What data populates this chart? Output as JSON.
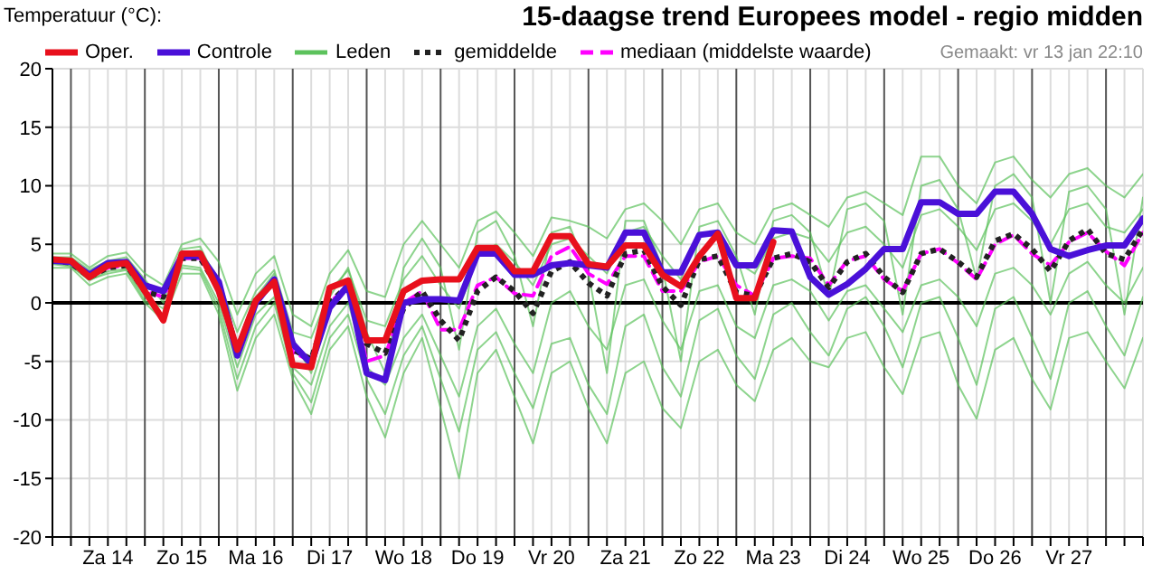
{
  "chart_data": {
    "type": "line",
    "title": "15-daagse trend Europees model - regio midden",
    "ylabel": "Temperatuur (°C):",
    "annotations": [
      "Gemaakt: vr 13 jan 22:10"
    ],
    "categories": [
      null,
      null,
      null,
      "Za 14",
      null,
      null,
      null,
      "Zo 15",
      null,
      null,
      null,
      "Ma 16",
      null,
      null,
      null,
      "Di 17",
      null,
      null,
      null,
      "Wo 18",
      null,
      null,
      null,
      "Do 19",
      null,
      null,
      null,
      "Vr 20",
      null,
      null,
      null,
      "Za 21",
      null,
      null,
      null,
      "Zo 22",
      null,
      null,
      null,
      "Ma 23",
      null,
      null,
      null,
      "Di 24",
      null,
      null,
      null,
      "Wo 25",
      null,
      null,
      null,
      "Do 26",
      null,
      null,
      null,
      "Vr 27",
      null,
      null,
      null,
      null
    ],
    "ylim": [
      -20,
      20
    ],
    "yticks": [
      -20,
      -15,
      -10,
      -5,
      0,
      5,
      10,
      15,
      20
    ],
    "grid": true,
    "legend": "top",
    "marker": "none",
    "ref_lines": [
      {
        "axis": "y",
        "value": 0,
        "color": "#000000"
      }
    ],
    "series": [
      {
        "name": "Oper.",
        "color": "#e8101c",
        "line_style": "solid",
        "values": [
          3.7,
          3.6,
          2.2,
          3.2,
          3.4,
          1.0,
          -1.5,
          4.2,
          4.2,
          1.0,
          -4.0,
          0.2,
          1.8,
          -5.3,
          -5.5,
          1.3,
          1.9,
          -3.2,
          -3.2,
          1.0,
          1.9,
          2.0,
          2.0,
          4.7,
          4.7,
          2.7,
          2.7,
          5.7,
          5.7,
          3.3,
          3.1,
          4.9,
          4.9,
          2.4,
          1.4,
          4.0,
          5.9,
          0.4,
          0.4,
          5.2,
          null,
          null,
          null,
          null,
          null,
          null,
          null,
          null,
          null,
          null,
          null,
          null,
          null,
          null,
          null,
          null,
          null,
          null,
          null,
          null
        ]
      },
      {
        "name": "Controle",
        "color": "#4a10d8",
        "line_style": "solid",
        "values": [
          3.6,
          3.5,
          2.4,
          3.4,
          3.5,
          1.5,
          1.0,
          4.0,
          4.0,
          1.8,
          -4.5,
          0.0,
          2.0,
          -3.5,
          -5.2,
          -0.4,
          1.5,
          -6.0,
          -6.6,
          0.0,
          0.3,
          0.3,
          0.2,
          4.2,
          4.2,
          2.4,
          2.4,
          3.2,
          3.4,
          3.2,
          3.0,
          6.0,
          6.0,
          2.6,
          2.6,
          5.8,
          6.0,
          3.2,
          3.2,
          6.2,
          6.1,
          2.2,
          0.7,
          1.6,
          2.9,
          4.6,
          4.6,
          8.6,
          8.6,
          7.6,
          7.6,
          9.5,
          9.5,
          7.6,
          4.6,
          4.0,
          4.5,
          4.9,
          4.9,
          7.2
        ]
      },
      {
        "name": "Leden",
        "color": "#5cc25c",
        "line_style": "solid",
        "values": [
          4.2,
          4.2,
          3.0,
          4.0,
          4.3,
          2.5,
          1.5,
          5.0,
          5.5,
          3.5,
          -1.0,
          2.5,
          4.0,
          -1.0,
          -2.0,
          2.5,
          4.5,
          1.0,
          0.5,
          5.0,
          7.0,
          5.0,
          3.0,
          7.0,
          7.8,
          6.0,
          4.0,
          7.3,
          7.0,
          6.5,
          5.5,
          8.0,
          8.5,
          7.0,
          5.0,
          8.0,
          8.5,
          6.0,
          5.0,
          8.0,
          8.5,
          7.5,
          6.5,
          9.0,
          9.5,
          8.5,
          7.5,
          12.5,
          12.5,
          10.0,
          8.5,
          12.0,
          12.5,
          10.5,
          9.0,
          11.0,
          11.5,
          10.0,
          9.0,
          11.0
        ]
      },
      {
        "name": "gemiddelde",
        "color": "#222222",
        "line_style": "dotted",
        "values": [
          3.6,
          3.4,
          2.2,
          3.0,
          3.2,
          1.0,
          0.5,
          3.8,
          3.8,
          1.2,
          -4.0,
          0.2,
          1.8,
          -4.0,
          -4.8,
          0,
          1.5,
          -3.5,
          -4.3,
          -0.5,
          1.0,
          -1.5,
          -3.2,
          1.0,
          2.2,
          1.0,
          -0.9,
          2.7,
          3.5,
          1.7,
          0.6,
          4.2,
          4.5,
          1.4,
          -0.2,
          3.7,
          4.0,
          0.9,
          0.6,
          3.8,
          4.2,
          3.5,
          1.3,
          3.5,
          4.2,
          2.2,
          0.9,
          4.2,
          4.6,
          3.5,
          2.2,
          5.3,
          5.9,
          4.6,
          2.7,
          5.3,
          6.3,
          4.2,
          3.7,
          6.3
        ]
      },
      {
        "name": "mediaan (middelste waarde)",
        "color": "#ff00ff",
        "line_style": "dashed",
        "values": [
          3.6,
          3.4,
          2.2,
          3.0,
          3.2,
          1.0,
          0.5,
          3.8,
          3.8,
          1.2,
          -4.2,
          0.2,
          1.8,
          -4.2,
          -5.0,
          0,
          1.5,
          -5.0,
          -4.5,
          0.0,
          1.0,
          -2.3,
          -2.3,
          1.5,
          2.2,
          0.8,
          0.6,
          4.0,
          4.8,
          2.5,
          1.6,
          4.0,
          4.0,
          1.0,
          1.0,
          3.5,
          4.0,
          1.5,
          0.6,
          3.8,
          4.0,
          3.8,
          1.5,
          3.6,
          4.0,
          2.0,
          1.0,
          4.2,
          4.6,
          3.4,
          2.0,
          5.0,
          5.8,
          4.2,
          3.2,
          5.2,
          6.0,
          4.4,
          3.2,
          6.0
        ]
      },
      {
        "color": "#5cc25c",
        "line_style": "solid",
        "values": [
          3.0,
          3.0,
          1.5,
          2.2,
          2.5,
          0,
          -1.5,
          2.5,
          2.5,
          -1.0,
          -7.5,
          -3.0,
          -1.0,
          -6.5,
          -9.5,
          -4.0,
          -2.0,
          -8.0,
          -11.5,
          -6.0,
          -3.0,
          -9.0,
          -15.0,
          -6.0,
          -4.0,
          -8.0,
          -12.0,
          -6.0,
          -5.0,
          -9.0,
          -12.0,
          -6.0,
          -5.0,
          -9.0,
          -10.7,
          -5.0,
          -4.0,
          -7.0,
          -8.4,
          -4.0,
          -3.0,
          -5.0,
          -5.5,
          -3.0,
          -2.5,
          -5.5,
          -7.8,
          -3.0,
          -2.5,
          -7.0,
          -9.9,
          -4.0,
          -3.0,
          -6.5,
          -9.1,
          -3.0,
          -2.5,
          -5.0,
          -7.3,
          -3.0
        ]
      },
      {
        "color": "#5cc25c",
        "line_style": "solid",
        "values": [
          3.8,
          3.7,
          2.6,
          3.4,
          3.6,
          1.5,
          1.0,
          4.3,
          4.5,
          2.0,
          -2.5,
          1.0,
          2.8,
          -2.5,
          -3.0,
          1.0,
          2.8,
          -1.5,
          -2.0,
          2.0,
          4.0,
          1.5,
          -0.5,
          4.0,
          5.0,
          3.5,
          1.5,
          5.0,
          5.5,
          4.0,
          2.5,
          6.0,
          6.5,
          4.0,
          2.0,
          6.0,
          6.0,
          3.5,
          2.5,
          5.5,
          6.0,
          5.5,
          3.5,
          6.0,
          6.5,
          5.0,
          3.0,
          7.5,
          8.0,
          6.5,
          4.5,
          8.0,
          8.5,
          7.0,
          5.0,
          8.0,
          8.5,
          6.5,
          6.0,
          8.0
        ]
      },
      {
        "color": "#5cc25c",
        "line_style": "solid",
        "values": [
          3.4,
          3.2,
          1.9,
          2.7,
          2.9,
          0.5,
          -0.5,
          3.2,
          3.0,
          0.0,
          -5.5,
          -1.0,
          0.5,
          -5.5,
          -7.0,
          -2.0,
          0.0,
          -5.5,
          -7.0,
          -3.0,
          -1.0,
          -4.5,
          -8.0,
          -2.0,
          -0.5,
          -3.5,
          -6.0,
          0.0,
          1.0,
          -2.0,
          -4.0,
          1.5,
          2.0,
          -1.5,
          -4.0,
          1.0,
          1.5,
          -2.0,
          -3.0,
          1.5,
          2.0,
          1.0,
          -1.5,
          1.0,
          1.5,
          -0.5,
          -2.5,
          1.5,
          2.0,
          0.5,
          -2.0,
          2.5,
          3.0,
          1.5,
          -1.0,
          2.5,
          3.5,
          1.5,
          0.0,
          3.0
        ]
      },
      {
        "color": "#5cc25c",
        "line_style": "solid",
        "values": [
          3.9,
          3.9,
          2.8,
          3.6,
          3.9,
          2.0,
          0.0,
          4.6,
          4.8,
          1.5,
          -3.5,
          0.5,
          2.5,
          -3.0,
          -6.0,
          0.5,
          3.0,
          -2.5,
          -6.0,
          3.0,
          5.5,
          3.0,
          -4.0,
          6.0,
          7.0,
          4.0,
          -2.0,
          6.0,
          6.5,
          2.5,
          -6.0,
          7.0,
          7.0,
          3.0,
          -5.0,
          6.5,
          7.0,
          4.0,
          -1.0,
          7.0,
          7.5,
          6.0,
          0.5,
          8.0,
          8.5,
          7.0,
          -1.0,
          10.0,
          10.5,
          8.0,
          2.0,
          10.0,
          11.0,
          9.0,
          0.0,
          9.5,
          10.0,
          8.0,
          -1.0,
          9.0
        ]
      },
      {
        "color": "#5cc25c",
        "line_style": "solid",
        "values": [
          3.3,
          3.1,
          2.0,
          2.5,
          2.8,
          0.2,
          -1.0,
          3.0,
          2.8,
          -0.5,
          -6.5,
          -2.0,
          0.0,
          -6.0,
          -8.5,
          -3.0,
          -1.0,
          -6.5,
          -9.5,
          -4.5,
          -2.0,
          -6.5,
          -11.0,
          -4.0,
          -2.5,
          -6.0,
          -9.0,
          -3.5,
          -3.0,
          -7.0,
          -9.5,
          -2.0,
          -1.0,
          -5.5,
          -8.0,
          -1.5,
          -0.5,
          -4.5,
          -6.5,
          -1.0,
          0.0,
          -2.5,
          -4.5,
          -0.5,
          0.5,
          -2.0,
          -5.5,
          0.0,
          0.5,
          -3.0,
          -7.0,
          -0.5,
          0.5,
          -3.0,
          -6.5,
          0.0,
          1.0,
          -2.0,
          -4.5,
          0.5
        ]
      }
    ]
  }
}
